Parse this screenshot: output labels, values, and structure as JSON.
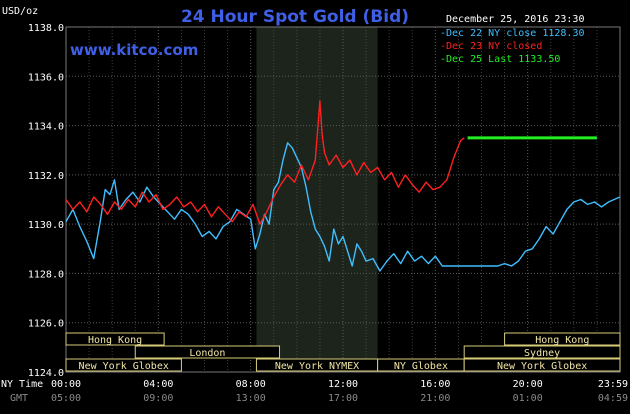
{
  "header": {
    "title": "24 Hour Spot Gold (Bid)",
    "website": "www.kitco.com",
    "timestamp": "December 25, 2016 23:30",
    "unit_label": "USD/oz"
  },
  "time_rows": {
    "ny_label": "NY Time",
    "gmt_label": "GMT"
  },
  "sessions": [
    {
      "name": "Hong Kong",
      "row": 0,
      "start": 0,
      "end": 4.25
    },
    {
      "name": "London",
      "row": 1,
      "start": 3.0,
      "end": 9.25
    },
    {
      "name": "New York Globex",
      "row": 2,
      "start": 0,
      "end": 5.0
    },
    {
      "name": "New York NYMEX",
      "row": 2,
      "start": 8.25,
      "end": 13.5
    },
    {
      "name": "NY Globex",
      "row": 2,
      "start": 13.5,
      "end": 17.25
    },
    {
      "name": "Hong Kong",
      "row": 0,
      "start": 19.0,
      "end": 24.0
    },
    {
      "name": "Sydney",
      "row": 1,
      "start": 17.25,
      "end": 24.0
    },
    {
      "name": "New York Globex",
      "row": 2,
      "start": 17.25,
      "end": 24.0
    }
  ],
  "colors": {
    "background": "#000000",
    "grid": "#5a5a5a",
    "highlight": "#1c241c",
    "title": "#3f5fe6",
    "dec22": "#3fbfff",
    "dec23": "#ff2020",
    "dec25": "#22ee22",
    "session_border": "#d8cc7a",
    "session_text": "#f2e6a6"
  },
  "chart_data": {
    "type": "line",
    "title": "24 Hour Spot Gold (Bid)",
    "ylabel": "USD/oz",
    "ylim": [
      1124.0,
      1138.0
    ],
    "yticks": [
      "1138.0",
      "1136.0",
      "1134.0",
      "1132.0",
      "1130.0",
      "1128.0",
      "1126.0",
      "1124.0"
    ],
    "xlim": [
      0,
      24
    ],
    "xticks_ny": [
      "00:00",
      "04:00",
      "08:00",
      "12:00",
      "16:00",
      "20:00",
      "23:59"
    ],
    "xticks_gmt": [
      "05:00",
      "09:00",
      "13:00",
      "17:00",
      "21:00",
      "01:00",
      "04:59"
    ],
    "nymex_session_hours": [
      8.25,
      13.5
    ],
    "legend": [
      {
        "label": "Dec 22 NY close 1128.30",
        "color": "#3fbfff"
      },
      {
        "label": "Dec 23 NY closed",
        "color": "#ff2020"
      },
      {
        "label": "Dec 25 Last 1133.50",
        "color": "#22ee22"
      }
    ],
    "series": [
      {
        "name": "Dec 22",
        "color": "#3fbfff",
        "x": [
          0,
          0.3,
          0.6,
          0.9,
          1.2,
          1.5,
          1.7,
          1.9,
          2.1,
          2.3,
          2.6,
          2.9,
          3.2,
          3.5,
          3.8,
          4.1,
          4.4,
          4.7,
          5.0,
          5.3,
          5.6,
          5.9,
          6.2,
          6.5,
          6.8,
          7.1,
          7.4,
          7.7,
          8.0,
          8.2,
          8.4,
          8.6,
          8.8,
          9.0,
          9.2,
          9.4,
          9.6,
          9.8,
          10.0,
          10.2,
          10.4,
          10.6,
          10.8,
          11.0,
          11.2,
          11.4,
          11.6,
          11.8,
          12.0,
          12.2,
          12.4,
          12.6,
          12.8,
          13.0,
          13.3,
          13.6,
          13.9,
          14.2,
          14.5,
          14.8,
          15.1,
          15.4,
          15.7,
          16.0,
          16.3,
          16.6,
          16.9,
          17.2,
          17.5,
          17.8,
          18.1,
          18.4,
          18.7,
          19.0,
          19.3,
          19.6,
          19.9,
          20.2,
          20.5,
          20.8,
          21.1,
          21.4,
          21.7,
          22.0,
          22.3,
          22.6,
          22.9,
          23.2,
          23.5,
          23.99
        ],
        "values": [
          1130.1,
          1130.6,
          1129.9,
          1129.3,
          1128.6,
          1130.2,
          1131.4,
          1131.2,
          1131.8,
          1130.6,
          1131.0,
          1131.3,
          1130.9,
          1131.5,
          1131.1,
          1130.8,
          1130.5,
          1130.2,
          1130.6,
          1130.4,
          1130.0,
          1129.5,
          1129.7,
          1129.4,
          1129.9,
          1130.1,
          1130.6,
          1130.4,
          1130.2,
          1129.0,
          1129.6,
          1130.4,
          1130.0,
          1131.4,
          1131.7,
          1132.6,
          1133.3,
          1133.1,
          1132.7,
          1132.3,
          1131.5,
          1130.5,
          1129.8,
          1129.5,
          1129.1,
          1128.5,
          1129.8,
          1129.2,
          1129.5,
          1128.9,
          1128.3,
          1129.2,
          1128.9,
          1128.5,
          1128.6,
          1128.1,
          1128.5,
          1128.8,
          1128.4,
          1128.9,
          1128.5,
          1128.7,
          1128.4,
          1128.7,
          1128.3,
          1128.3,
          1128.3,
          1128.3,
          1128.3,
          1128.3,
          1128.3,
          1128.3,
          1128.3,
          1128.4,
          1128.3,
          1128.5,
          1128.9,
          1129.0,
          1129.4,
          1129.9,
          1129.6,
          1130.1,
          1130.6,
          1130.9,
          1131.0,
          1130.8,
          1130.9,
          1130.7,
          1130.9,
          1131.1
        ]
      },
      {
        "name": "Dec 23",
        "color": "#ff2020",
        "x": [
          0,
          0.3,
          0.6,
          0.9,
          1.2,
          1.5,
          1.8,
          2.1,
          2.4,
          2.7,
          3.0,
          3.3,
          3.6,
          3.9,
          4.2,
          4.5,
          4.8,
          5.1,
          5.4,
          5.7,
          6.0,
          6.3,
          6.6,
          6.9,
          7.2,
          7.5,
          7.8,
          8.1,
          8.4,
          8.7,
          9.0,
          9.3,
          9.6,
          9.9,
          10.2,
          10.5,
          10.8,
          11.0,
          11.1,
          11.2,
          11.4,
          11.7,
          12.0,
          12.3,
          12.6,
          12.9,
          13.2,
          13.5,
          13.8,
          14.1,
          14.4,
          14.7,
          15.0,
          15.3,
          15.6,
          15.9,
          16.2,
          16.5,
          16.8,
          17.1,
          17.25
        ],
        "values": [
          1131.0,
          1130.6,
          1130.9,
          1130.5,
          1131.1,
          1130.8,
          1130.4,
          1130.9,
          1130.6,
          1131.0,
          1130.7,
          1131.3,
          1130.9,
          1131.2,
          1130.6,
          1130.8,
          1131.1,
          1130.7,
          1130.9,
          1130.5,
          1130.8,
          1130.3,
          1130.7,
          1130.4,
          1130.1,
          1130.5,
          1130.3,
          1130.8,
          1130.0,
          1130.5,
          1131.1,
          1131.6,
          1132.0,
          1131.7,
          1132.4,
          1131.8,
          1132.6,
          1135.0,
          1133.6,
          1132.9,
          1132.4,
          1132.8,
          1132.3,
          1132.6,
          1132.0,
          1132.5,
          1132.1,
          1132.3,
          1131.8,
          1132.1,
          1131.5,
          1132.0,
          1131.6,
          1131.3,
          1131.7,
          1131.4,
          1131.5,
          1131.8,
          1132.7,
          1133.4,
          1133.5
        ]
      },
      {
        "name": "Dec 25",
        "color": "#22ee22",
        "x": [
          17.4,
          23.0
        ],
        "values": [
          1133.5,
          1133.5
        ]
      }
    ],
    "grid": true,
    "legend_position": "top-right"
  }
}
